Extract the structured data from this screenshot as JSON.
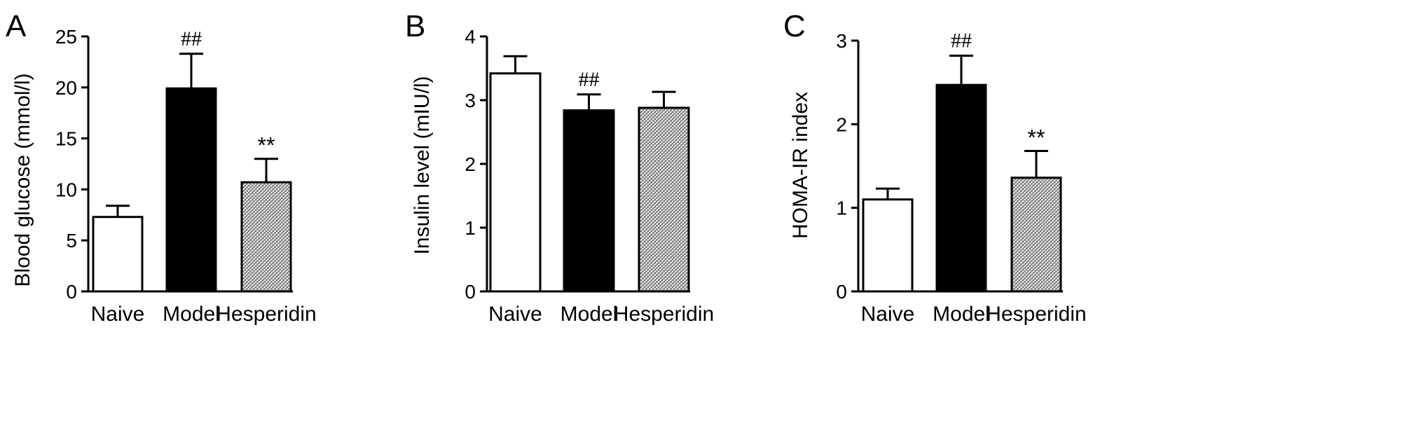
{
  "figure": {
    "panels": [
      {
        "letter": "A"
      },
      {
        "letter": "B"
      },
      {
        "letter": "C"
      }
    ]
  },
  "colors": {
    "naive": "#ffffff",
    "model": "#000000",
    "hesperidin": "hatched gray",
    "outline": "#000000"
  },
  "chart_data": [
    {
      "type": "bar",
      "panel": "A",
      "categories": [
        "Naive",
        "Model",
        "Hesperidin"
      ],
      "values": [
        7.3,
        19.9,
        10.7
      ],
      "error_upper": [
        1.1,
        3.4,
        2.3
      ],
      "annotations": [
        "",
        "##",
        "**"
      ],
      "ylabel": "Blood glucose (mmol/l)",
      "ylim": [
        0,
        25
      ],
      "yticks": [
        0,
        5,
        10,
        15,
        20,
        25
      ],
      "ytick_labels": [
        "0",
        "5",
        "10",
        "15",
        "20",
        "25"
      ]
    },
    {
      "type": "bar",
      "panel": "B",
      "categories": [
        "Naive",
        "Model",
        "Hesperidin"
      ],
      "values": [
        3.42,
        2.84,
        2.88
      ],
      "error_upper": [
        0.27,
        0.25,
        0.25
      ],
      "annotations": [
        "",
        "##",
        ""
      ],
      "ylabel": "Insulin level (mIU/l)",
      "ylim": [
        0,
        4
      ],
      "yticks": [
        0,
        1,
        2,
        3,
        4
      ],
      "ytick_labels": [
        "0",
        "1",
        "2",
        "3",
        "4"
      ]
    },
    {
      "type": "bar",
      "panel": "C",
      "categories": [
        "Naive",
        "Model",
        "Hesperidin"
      ],
      "values": [
        1.1,
        2.47,
        1.36
      ],
      "error_upper": [
        0.13,
        0.35,
        0.32
      ],
      "annotations": [
        "",
        "##",
        "**"
      ],
      "ylabel": "HOMA-IR index",
      "ylim": [
        0,
        3
      ],
      "yticks": [
        0,
        1,
        2,
        3
      ],
      "ytick_labels": [
        "0",
        "1",
        "2",
        "3"
      ]
    }
  ]
}
